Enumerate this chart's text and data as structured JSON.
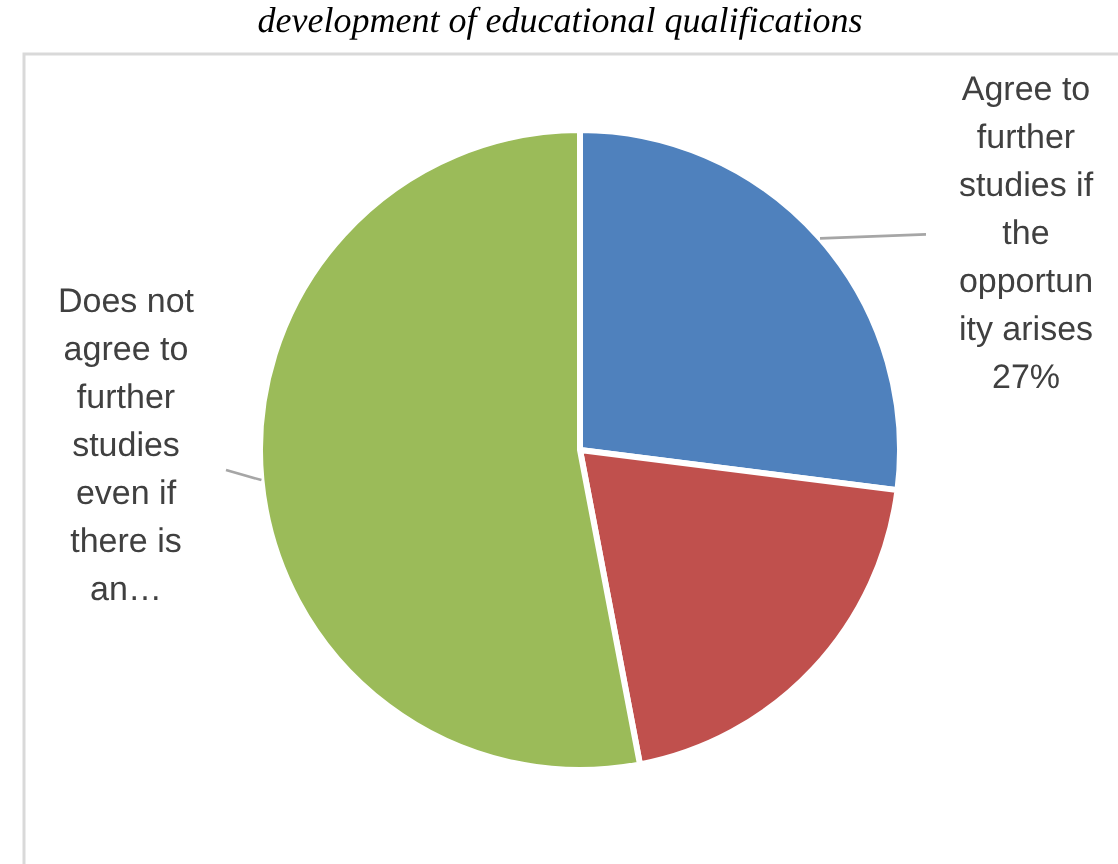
{
  "chart_data": {
    "type": "pie",
    "title": "development of educational qualifications",
    "categories": [
      "Agree to further studies if the opportunity arises",
      null,
      "Does not agree to further studies even if there is an…"
    ],
    "values": [
      27,
      20,
      53
    ],
    "colors": [
      "#4f81bd",
      "#c0504d",
      "#9bbb59"
    ],
    "value_labels": [
      "27%",
      null,
      null
    ]
  }
}
